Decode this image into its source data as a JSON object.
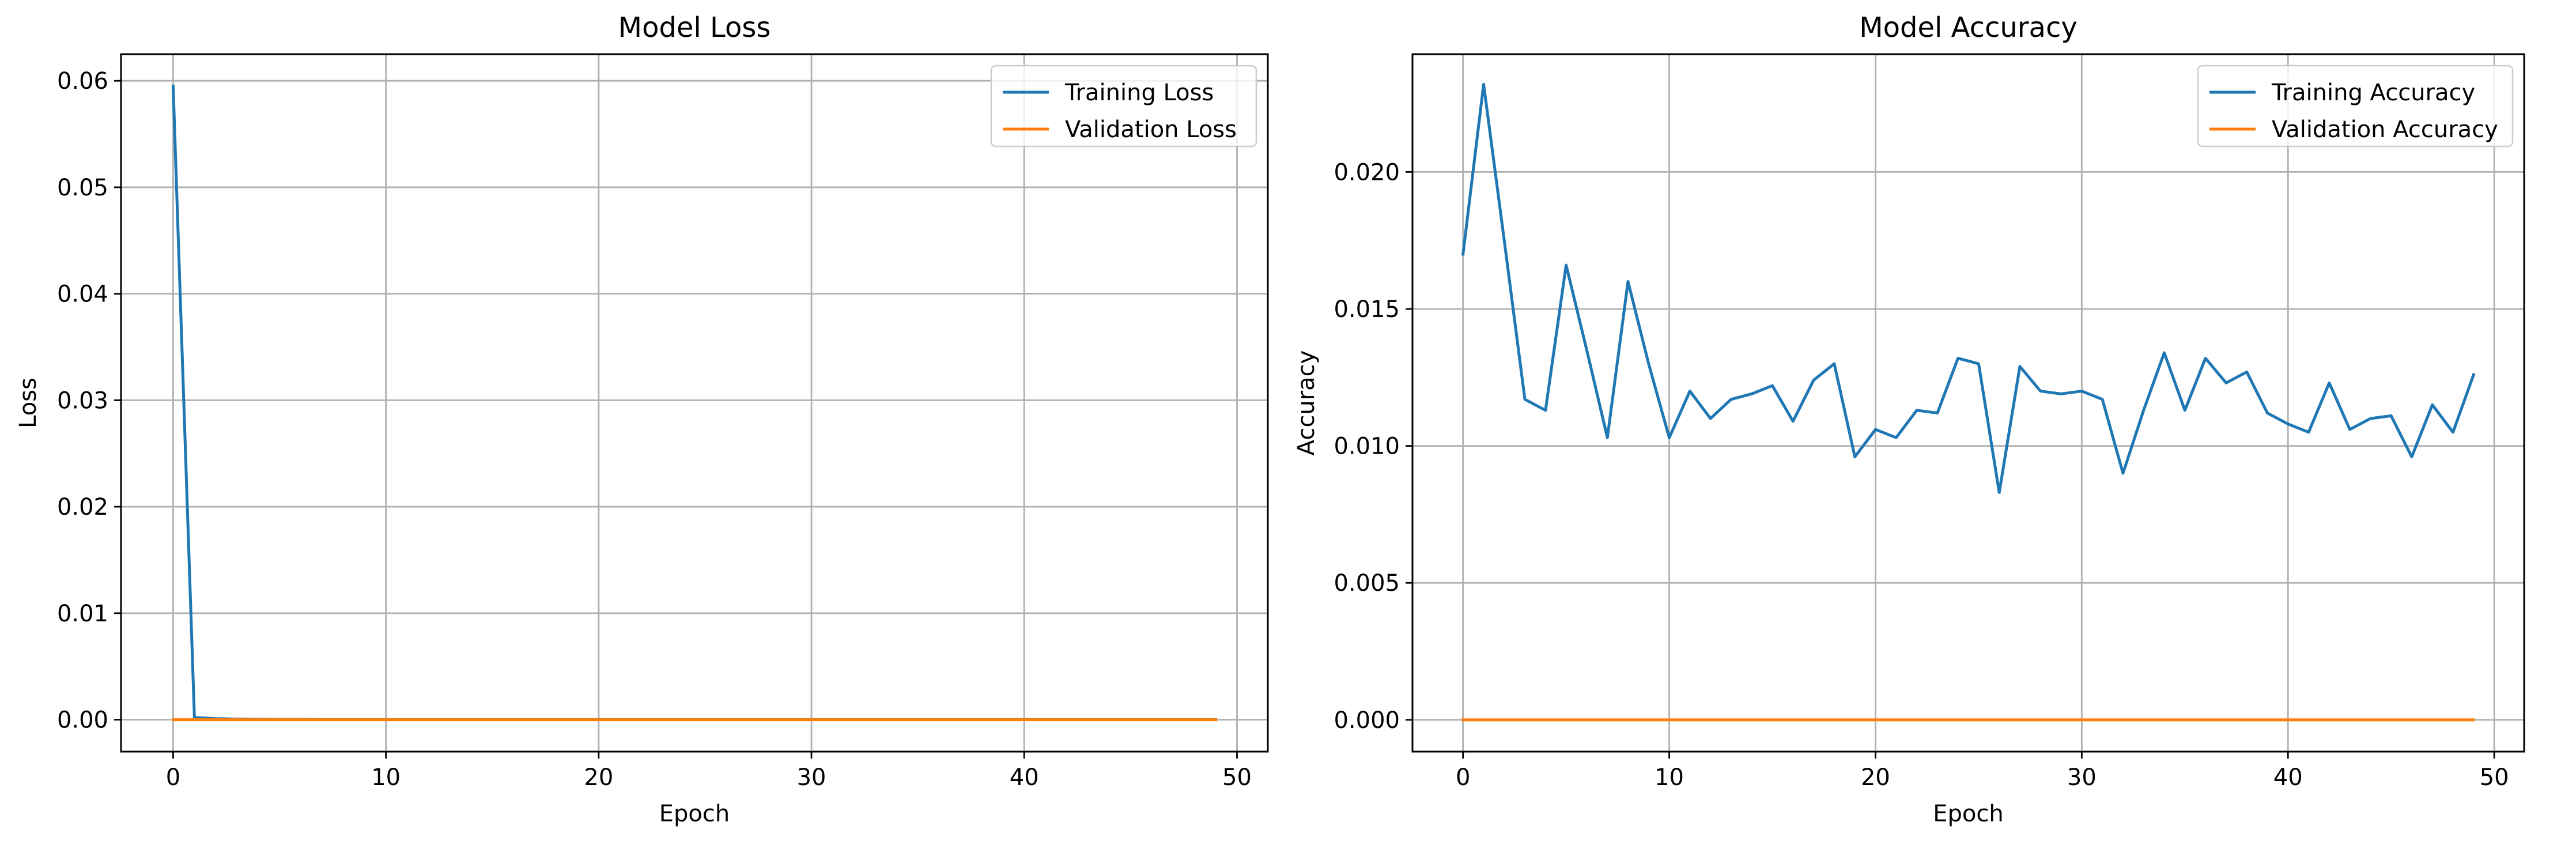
{
  "chart_data": [
    {
      "type": "line",
      "title": "Model Loss",
      "xlabel": "Epoch",
      "ylabel": "Loss",
      "xlim": [
        -2.45,
        51.45
      ],
      "ylim": [
        -0.003,
        0.0625
      ],
      "xticks": [
        0,
        10,
        20,
        30,
        40,
        50
      ],
      "yticks": [
        0.0,
        0.01,
        0.02,
        0.03,
        0.04,
        0.05,
        0.06
      ],
      "xtick_labels": [
        "0",
        "10",
        "20",
        "30",
        "40",
        "50"
      ],
      "ytick_labels": [
        "0.00",
        "0.01",
        "0.02",
        "0.03",
        "0.04",
        "0.05",
        "0.06"
      ],
      "grid": true,
      "legend_position": "top-right",
      "x": [
        0,
        1,
        2,
        3,
        4,
        5,
        6,
        7,
        8,
        9,
        10,
        11,
        12,
        13,
        14,
        15,
        16,
        17,
        18,
        19,
        20,
        21,
        22,
        23,
        24,
        25,
        26,
        27,
        28,
        29,
        30,
        31,
        32,
        33,
        34,
        35,
        36,
        37,
        38,
        39,
        40,
        41,
        42,
        43,
        44,
        45,
        46,
        47,
        48,
        49
      ],
      "series": [
        {
          "name": "Training Loss",
          "color": "#1f77b4",
          "values": [
            0.0595,
            0.0002,
            0.0001,
            5e-05,
            3e-05,
            2e-05,
            2e-05,
            1e-05,
            1e-05,
            1e-05,
            1e-05,
            1e-05,
            1e-05,
            1e-05,
            1e-05,
            1e-05,
            1e-05,
            1e-05,
            1e-05,
            1e-05,
            1e-05,
            1e-05,
            1e-05,
            1e-05,
            1e-05,
            1e-05,
            1e-05,
            1e-05,
            1e-05,
            1e-05,
            1e-05,
            1e-05,
            1e-05,
            1e-05,
            1e-05,
            1e-05,
            1e-05,
            1e-05,
            1e-05,
            1e-05,
            1e-05,
            1e-05,
            1e-05,
            1e-05,
            1e-05,
            1e-05,
            1e-05,
            1e-05,
            1e-05,
            1e-05
          ]
        },
        {
          "name": "Validation Loss",
          "color": "#ff7f0e",
          "values": [
            0,
            0,
            0,
            0,
            0,
            0,
            0,
            0,
            0,
            0,
            0,
            0,
            0,
            0,
            0,
            0,
            0,
            0,
            0,
            0,
            0,
            0,
            0,
            0,
            0,
            0,
            0,
            0,
            0,
            0,
            0,
            0,
            0,
            0,
            0,
            0,
            0,
            0,
            0,
            0,
            0,
            0,
            0,
            0,
            0,
            0,
            0,
            0,
            0,
            0
          ]
        }
      ]
    },
    {
      "type": "line",
      "title": "Model Accuracy",
      "xlabel": "Epoch",
      "ylabel": "Accuracy",
      "xlim": [
        -2.45,
        51.45
      ],
      "ylim": [
        -0.00116,
        0.0243
      ],
      "xticks": [
        0,
        10,
        20,
        30,
        40,
        50
      ],
      "yticks": [
        0.0,
        0.005,
        0.01,
        0.015,
        0.02
      ],
      "xtick_labels": [
        "0",
        "10",
        "20",
        "30",
        "40",
        "50"
      ],
      "ytick_labels": [
        "0.000",
        "0.005",
        "0.010",
        "0.015",
        "0.020"
      ],
      "grid": true,
      "legend_position": "top-right",
      "x": [
        0,
        1,
        2,
        3,
        4,
        5,
        6,
        7,
        8,
        9,
        10,
        11,
        12,
        13,
        14,
        15,
        16,
        17,
        18,
        19,
        20,
        21,
        22,
        23,
        24,
        25,
        26,
        27,
        28,
        29,
        30,
        31,
        32,
        33,
        34,
        35,
        36,
        37,
        38,
        39,
        40,
        41,
        42,
        43,
        44,
        45,
        46,
        47,
        48,
        49
      ],
      "series": [
        {
          "name": "Training Accuracy",
          "color": "#1f77b4",
          "values": [
            0.017,
            0.0232,
            0.0175,
            0.0117,
            0.0113,
            0.0166,
            0.0135,
            0.0103,
            0.016,
            0.013,
            0.0103,
            0.012,
            0.011,
            0.0117,
            0.0119,
            0.0122,
            0.0109,
            0.0124,
            0.013,
            0.0096,
            0.0106,
            0.0103,
            0.0113,
            0.0112,
            0.0132,
            0.013,
            0.0083,
            0.0129,
            0.012,
            0.0119,
            0.012,
            0.0117,
            0.009,
            0.0113,
            0.0134,
            0.0113,
            0.0132,
            0.0123,
            0.0127,
            0.0112,
            0.0108,
            0.0105,
            0.0123,
            0.0106,
            0.011,
            0.0111,
            0.0096,
            0.0115,
            0.0105,
            0.0126
          ]
        },
        {
          "name": "Validation Accuracy",
          "color": "#ff7f0e",
          "values": [
            0,
            0,
            0,
            0,
            0,
            0,
            0,
            0,
            0,
            0,
            0,
            0,
            0,
            0,
            0,
            0,
            0,
            0,
            0,
            0,
            0,
            0,
            0,
            0,
            0,
            0,
            0,
            0,
            0,
            0,
            0,
            0,
            0,
            0,
            0,
            0,
            0,
            0,
            0,
            0,
            0,
            0,
            0,
            0,
            0,
            0,
            0,
            0,
            0,
            0
          ]
        }
      ]
    }
  ]
}
